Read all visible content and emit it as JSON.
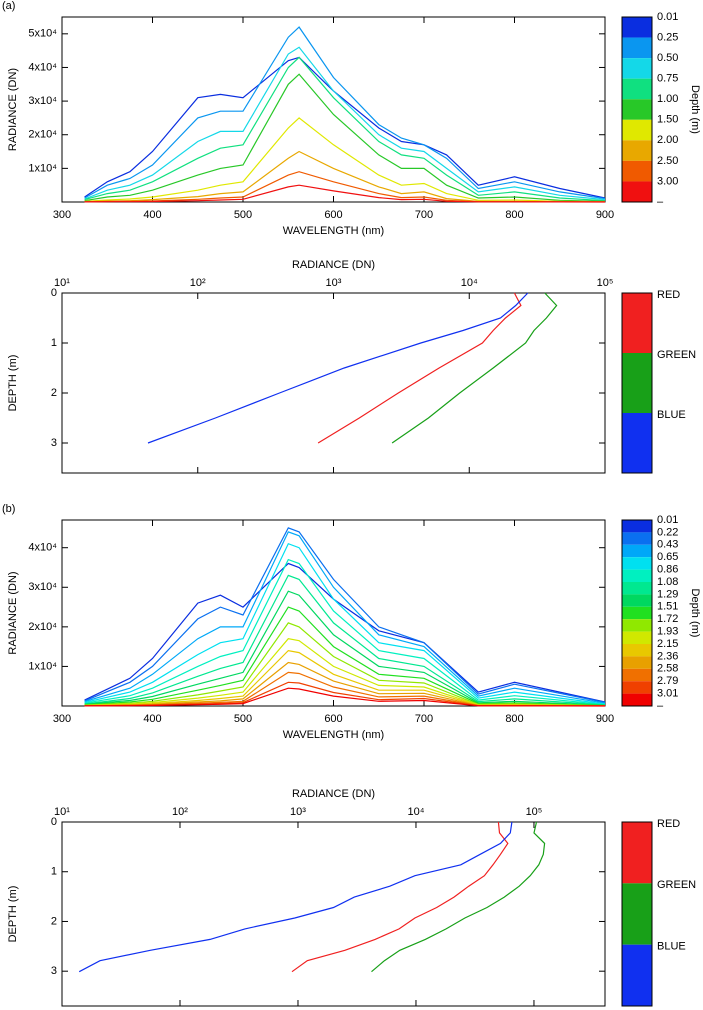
{
  "chart_data": [
    {
      "type": "line",
      "panel_label": "(a)",
      "xlabel": "WAVELENGTH (nm)",
      "ylabel": "RADIANCE (DN)",
      "legend_title": "Depth (m)",
      "legend_end_label": "–",
      "x": [
        325,
        350,
        375,
        400,
        450,
        475,
        500,
        550,
        562,
        600,
        650,
        675,
        700,
        725,
        760,
        800,
        850,
        900
      ],
      "xlim": [
        300,
        900
      ],
      "xticks": [
        300,
        400,
        500,
        600,
        700,
        800,
        900
      ],
      "ylim": [
        0,
        55000
      ],
      "yticks": [
        {
          "value": 10000,
          "label": "1x10⁴"
        },
        {
          "value": 20000,
          "label": "2x10⁴"
        },
        {
          "value": 30000,
          "label": "3x10⁴"
        },
        {
          "value": 40000,
          "label": "4x10⁴"
        },
        {
          "value": 50000,
          "label": "5x10⁴"
        }
      ],
      "series": [
        {
          "name": "0.01",
          "color": "#0a2ee0",
          "values": [
            1500,
            6000,
            9000,
            15000,
            31000,
            32000,
            31000,
            42000,
            43000,
            33000,
            22000,
            18000,
            17000,
            14000,
            5000,
            7500,
            4000,
            1200
          ]
        },
        {
          "name": "0.25",
          "color": "#0a96f0",
          "values": [
            1200,
            5000,
            7000,
            11000,
            25000,
            27000,
            27000,
            49000,
            52000,
            37000,
            23000,
            19000,
            17000,
            13000,
            4000,
            6000,
            3000,
            1000
          ]
        },
        {
          "name": "0.50",
          "color": "#14d8e8",
          "values": [
            900,
            3500,
            5000,
            8000,
            18000,
            21000,
            21000,
            44000,
            46000,
            33000,
            20000,
            16000,
            15000,
            10000,
            3000,
            4500,
            2000,
            700
          ]
        },
        {
          "name": "0.75",
          "color": "#10e080",
          "values": [
            700,
            2500,
            3500,
            6000,
            13000,
            16000,
            17000,
            40000,
            43000,
            31000,
            18000,
            14000,
            13000,
            8000,
            2000,
            3000,
            1200,
            400
          ]
        },
        {
          "name": "1.00",
          "color": "#28c828",
          "values": [
            400,
            1500,
            2000,
            3500,
            8000,
            10000,
            11000,
            35000,
            38000,
            26000,
            14000,
            10000,
            10000,
            5000,
            1200,
            1500,
            500,
            200
          ]
        },
        {
          "name": "1.50",
          "color": "#e0e800",
          "values": [
            200,
            600,
            900,
            1500,
            3500,
            5000,
            6000,
            22000,
            25000,
            17000,
            8000,
            5000,
            5500,
            2500,
            500,
            600,
            200,
            100
          ]
        },
        {
          "name": "2.00",
          "color": "#e8a800",
          "values": [
            100,
            300,
            400,
            700,
            1600,
            2500,
            3000,
            13000,
            15000,
            10000,
            4500,
            2500,
            3000,
            1000,
            200,
            200,
            100,
            50
          ]
        },
        {
          "name": "2.50",
          "color": "#f05a00",
          "values": [
            50,
            150,
            200,
            300,
            800,
            1200,
            1500,
            8000,
            9000,
            6000,
            2500,
            1300,
            1500,
            500,
            100,
            100,
            50,
            20
          ]
        },
        {
          "name": "3.00",
          "color": "#f01010",
          "values": [
            20,
            80,
            100,
            150,
            400,
            600,
            800,
            4500,
            5000,
            3300,
            1300,
            700,
            800,
            200,
            50,
            50,
            20,
            10
          ]
        }
      ]
    },
    {
      "type": "profile",
      "xlabel": "RADIANCE (DN)",
      "ylabel": "DEPTH (m)",
      "xlog": true,
      "x_axis_top": true,
      "xlim": [
        10,
        100000
      ],
      "xticks": [
        {
          "value": 10,
          "label": "10¹"
        },
        {
          "value": 100,
          "label": "10²"
        },
        {
          "value": 1000,
          "label": "10³"
        },
        {
          "value": 10000,
          "label": "10⁴"
        },
        {
          "value": 100000,
          "label": "10⁵"
        }
      ],
      "ylim": [
        3.6,
        0
      ],
      "yticks": [
        0,
        1,
        2,
        3
      ],
      "series": [
        {
          "name": "RED",
          "color": "#f02020",
          "x": [
            21500,
            24000,
            18500,
            15000,
            12500,
            6000,
            3000,
            1550,
            770
          ],
          "values": [
            0,
            0.25,
            0.5,
            0.75,
            1,
            1.5,
            2,
            2.5,
            3
          ]
        },
        {
          "name": "GREEN",
          "color": "#18a018",
          "x": [
            36000,
            44000,
            37000,
            30000,
            26000,
            15000,
            8500,
            5000,
            2700
          ],
          "values": [
            0,
            0.25,
            0.5,
            0.75,
            1,
            1.5,
            2,
            2.5,
            3
          ]
        },
        {
          "name": "BLUE",
          "color": "#1030f0",
          "x": [
            27000,
            22000,
            17000,
            9000,
            4400,
            1200,
            400,
            135,
            43
          ],
          "values": [
            0,
            0.25,
            0.5,
            0.75,
            1,
            1.5,
            2,
            2.5,
            3
          ]
        }
      ]
    },
    {
      "type": "line",
      "panel_label": "(b)",
      "xlabel": "WAVELENGTH (nm)",
      "ylabel": "RADIANCE (DN)",
      "legend_title": "Depth (m)",
      "legend_end_label": "–",
      "x": [
        325,
        375,
        400,
        450,
        475,
        500,
        550,
        562,
        600,
        650,
        700,
        760,
        800,
        900
      ],
      "xlim": [
        300,
        900
      ],
      "xticks": [
        300,
        400,
        500,
        600,
        700,
        800,
        900
      ],
      "ylim": [
        0,
        47000
      ],
      "yticks": [
        {
          "value": 10000,
          "label": "1x10⁴"
        },
        {
          "value": 20000,
          "label": "2x10⁴"
        },
        {
          "value": 30000,
          "label": "3x10⁴"
        },
        {
          "value": 40000,
          "label": "4x10⁴"
        }
      ],
      "series": [
        {
          "name": "0.01",
          "color": "#0a2ee0",
          "values": [
            1500,
            7000,
            12000,
            26000,
            28000,
            25000,
            36000,
            35000,
            27000,
            19000,
            16000,
            3500,
            6000,
            1000
          ]
        },
        {
          "name": "0.22",
          "color": "#0a70f0",
          "values": [
            1300,
            6000,
            10000,
            22000,
            25000,
            23000,
            45000,
            44000,
            32000,
            20000,
            16000,
            3000,
            5500,
            900
          ]
        },
        {
          "name": "0.43",
          "color": "#00a8f8",
          "values": [
            1100,
            4500,
            8000,
            17000,
            20000,
            20000,
            44000,
            43000,
            30000,
            18000,
            15000,
            2500,
            4500,
            700
          ]
        },
        {
          "name": "0.65",
          "color": "#00e0f0",
          "values": [
            900,
            3500,
            6000,
            13000,
            16000,
            17000,
            41000,
            40000,
            27000,
            16000,
            14000,
            2000,
            3500,
            500
          ]
        },
        {
          "name": "0.86",
          "color": "#00f0c0",
          "values": [
            700,
            2600,
            4500,
            10000,
            12500,
            14000,
            37000,
            36000,
            24000,
            14000,
            12000,
            1500,
            2600,
            350
          ]
        },
        {
          "name": "1.08",
          "color": "#00e890",
          "values": [
            500,
            1900,
            3300,
            7500,
            9500,
            11000,
            33000,
            32000,
            21000,
            12000,
            10000,
            1100,
            1800,
            250
          ]
        },
        {
          "name": "1.29",
          "color": "#00d860",
          "values": [
            400,
            1400,
            2400,
            5500,
            7000,
            8500,
            29000,
            28000,
            18000,
            10000,
            8500,
            800,
            1200,
            180
          ]
        },
        {
          "name": "1.51",
          "color": "#20e020",
          "values": [
            300,
            1000,
            1700,
            4000,
            5200,
            6500,
            25000,
            24000,
            15000,
            8000,
            7000,
            600,
            800,
            120
          ]
        },
        {
          "name": "1.72",
          "color": "#90e800",
          "values": [
            200,
            700,
            1200,
            2800,
            3800,
            4800,
            21000,
            20000,
            12500,
            6500,
            5800,
            400,
            550,
            80
          ]
        },
        {
          "name": "1.93",
          "color": "#d0e800",
          "values": [
            150,
            500,
            850,
            2000,
            2700,
            3500,
            17000,
            16500,
            10000,
            5200,
            4800,
            300,
            350,
            60
          ]
        },
        {
          "name": "2.15",
          "color": "#e8c800",
          "values": [
            100,
            350,
            600,
            1400,
            1900,
            2500,
            14000,
            13500,
            8000,
            4000,
            4000,
            200,
            250,
            40
          ]
        },
        {
          "name": "2.36",
          "color": "#e8a000",
          "values": [
            80,
            250,
            400,
            1000,
            1300,
            1800,
            11000,
            10500,
            6300,
            3100,
            3200,
            150,
            160,
            30
          ]
        },
        {
          "name": "2.58",
          "color": "#f07000",
          "values": [
            60,
            170,
            280,
            700,
            900,
            1200,
            8500,
            8200,
            4800,
            2300,
            2500,
            100,
            100,
            20
          ]
        },
        {
          "name": "2.79",
          "color": "#f04000",
          "values": [
            40,
            120,
            190,
            480,
            620,
            850,
            6000,
            5800,
            3400,
            1600,
            1900,
            70,
            70,
            15
          ]
        },
        {
          "name": "3.01",
          "color": "#f00000",
          "values": [
            30,
            80,
            130,
            330,
            430,
            600,
            4500,
            4300,
            2500,
            1200,
            1400,
            50,
            50,
            10
          ]
        }
      ]
    },
    {
      "type": "profile",
      "xlabel": "RADIANCE (DN)",
      "ylabel": "DEPTH (m)",
      "xlog": true,
      "x_axis_top": true,
      "xlim": [
        10,
        400000
      ],
      "xticks": [
        {
          "value": 10,
          "label": "10¹"
        },
        {
          "value": 100,
          "label": "10²"
        },
        {
          "value": 1000,
          "label": "10³"
        },
        {
          "value": 10000,
          "label": "10⁴"
        },
        {
          "value": 100000,
          "label": "10⁵"
        }
      ],
      "ylim": [
        3.7,
        0
      ],
      "yticks": [
        0,
        1,
        2,
        3
      ],
      "series": [
        {
          "name": "RED",
          "color": "#f02020",
          "x": [
            50000,
            51000,
            60000,
            52000,
            45000,
            38000,
            28000,
            21000,
            15000,
            9800,
            7200,
            4500,
            2500,
            1200,
            890
          ],
          "values": [
            0,
            0.22,
            0.43,
            0.65,
            0.86,
            1.08,
            1.29,
            1.51,
            1.72,
            1.93,
            2.15,
            2.36,
            2.58,
            2.79,
            3.01
          ]
        },
        {
          "name": "GREEN",
          "color": "#18a018",
          "x": [
            105000,
            100000,
            123000,
            120000,
            110000,
            93000,
            75000,
            56000,
            40000,
            26000,
            18000,
            12000,
            7300,
            5400,
            4200
          ],
          "values": [
            0,
            0.22,
            0.43,
            0.65,
            0.86,
            1.08,
            1.29,
            1.51,
            1.72,
            1.93,
            2.15,
            2.36,
            2.58,
            2.79,
            3.01
          ]
        },
        {
          "name": "BLUE",
          "color": "#1030f0",
          "x": [
            65000,
            63000,
            52000,
            35000,
            24000,
            9800,
            6000,
            3000,
            2000,
            940,
            355,
            180,
            56,
            21,
            14
          ],
          "values": [
            0,
            0.22,
            0.43,
            0.65,
            0.86,
            1.08,
            1.29,
            1.51,
            1.72,
            1.93,
            2.15,
            2.36,
            2.58,
            2.79,
            3.01
          ]
        }
      ]
    }
  ]
}
